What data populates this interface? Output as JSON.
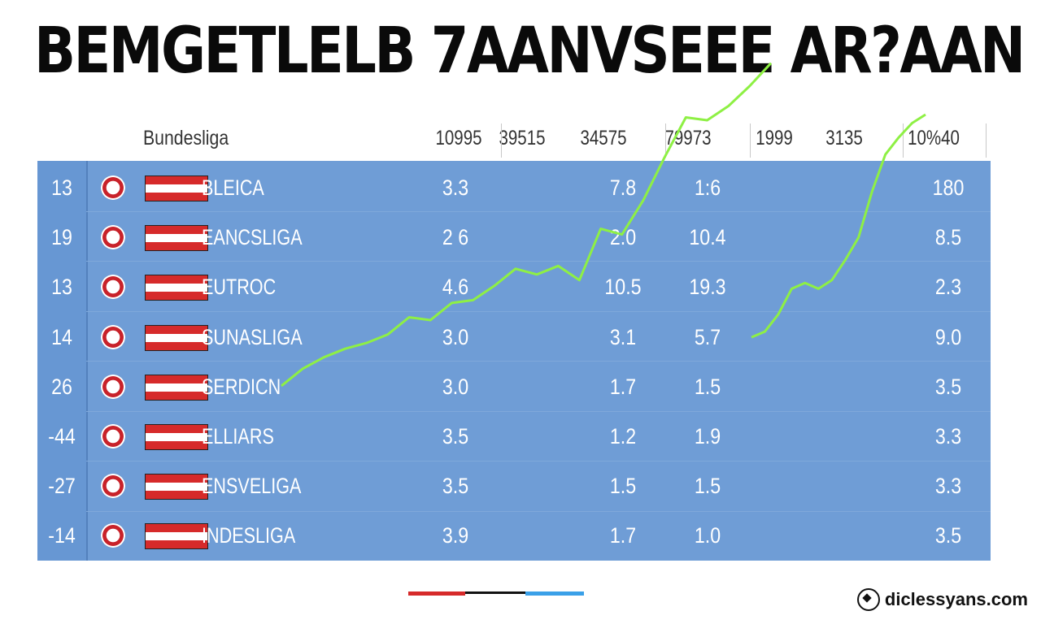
{
  "title": "BEMGETLELB 7AANVSEEE AR?AAN",
  "footer_text": "diclessyans.com",
  "colors": {
    "table": "#6f9dd6",
    "line": "#8ef044",
    "accent_red": "#d62a2a",
    "accent_blue": "#3aa0e8"
  },
  "table": {
    "league_header": "Bundesliga",
    "column_headers": [
      "10995",
      "39515",
      "34575",
      "79973",
      "1999",
      "3135",
      "10%40"
    ],
    "rows": [
      {
        "rank": "13",
        "team": "BLEICA",
        "c1": "3.3",
        "c2": "7.8",
        "c3": "1:6",
        "c4": "180"
      },
      {
        "rank": "19",
        "team": "EANCSLIGA",
        "c1": "2 6",
        "c2": "2.0",
        "c3": "10.4",
        "c4": "8.5"
      },
      {
        "rank": "13",
        "team": "EUTROC",
        "c1": "4.6",
        "c2": "10.5",
        "c3": "19.3",
        "c4": "2.3"
      },
      {
        "rank": "14",
        "team": "SUNASLIGA",
        "c1": "3.0",
        "c2": "3.1",
        "c3": "5.7",
        "c4": "9.0"
      },
      {
        "rank": "26",
        "team": "SERDICN",
        "c1": "3.0",
        "c2": "1.7",
        "c3": "1.5",
        "c4": "3.5"
      },
      {
        "rank": "-44",
        "team": "ELLIARS",
        "c1": "3.5",
        "c2": "1.2",
        "c3": "1.9",
        "c4": "3.3"
      },
      {
        "rank": "-27",
        "team": "ENSVELIGA",
        "c1": "3.5",
        "c2": "1.5",
        "c3": "1.5",
        "c4": "3.3"
      },
      {
        "rank": "-14",
        "team": "INDESLIGA",
        "c1": "3.9",
        "c2": "1.7",
        "c3": "1.0",
        "c4": "3.5"
      }
    ]
  },
  "chart_data": {
    "type": "line",
    "series": [
      {
        "values": [
          1.0,
          1.6,
          2.0,
          2.3,
          2.5,
          2.8,
          3.4,
          3.3,
          3.9,
          4.0,
          4.5,
          5.1,
          4.9,
          5.2,
          4.7,
          6.5,
          6.3,
          7.5,
          9.0,
          10.4,
          10.3,
          10.8,
          11.5,
          12.3
        ]
      },
      {
        "values": [
          2.7,
          2.9,
          3.5,
          4.4,
          4.6,
          4.4,
          4.7,
          5.4,
          6.2,
          7.8,
          9.1,
          9.7,
          10.2,
          10.5
        ]
      }
    ]
  }
}
